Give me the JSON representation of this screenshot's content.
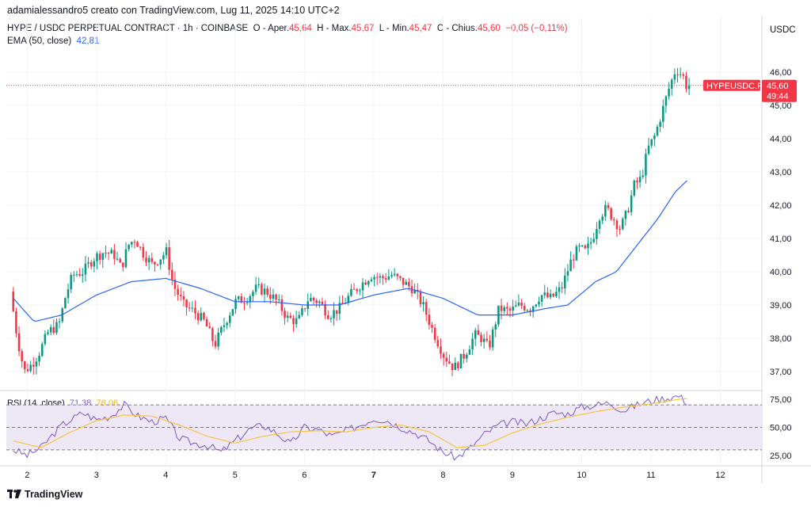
{
  "header": {
    "byline": "adamialessandro5 creato con TradingView.com, Lug 11, 2025 14:10 UTC+2",
    "symbol_line": "HYPE / USDC PERPETUAL CONTRACT · 1h · COINBASE",
    "o_label": "O - Aper.",
    "o_val": "45,64",
    "h_label": "H - Max.",
    "h_val": "45,67",
    "l_label": "L - Min.",
    "l_val": "45,47",
    "c_label": "C - Chius.",
    "c_val": "45,60",
    "change": "−0,05 (−0,11%)",
    "ema_label": "EMA (50, close)",
    "ema_val": "42,81",
    "rsi_label": "RSI (14, close)",
    "rsi_val": "71,38",
    "rsi_ma_val": "76,06",
    "currency": "USDC"
  },
  "price_tag": {
    "symbol": "HYPEUSDC.P",
    "price": "45,60",
    "countdown": "49:44"
  },
  "footer": {
    "brand": "TradingView"
  },
  "colors": {
    "up": "#089981",
    "down": "#f23645",
    "ema": "#2962ff",
    "rsi": "#7e57c2",
    "rsi_ma": "#f5c542",
    "rsi_band": "#ede7f6"
  },
  "chart_data": {
    "type": "candlestick",
    "interval": "1h",
    "price_axis": {
      "ylim": [
        36.5,
        46.5
      ],
      "ticks": [
        "46,00",
        "45,00",
        "44,00",
        "43,00",
        "42,00",
        "41,00",
        "40,00",
        "39,00",
        "38,00",
        "37,00"
      ]
    },
    "rsi_axis": {
      "ylim": [
        20,
        80
      ],
      "ticks": [
        "75,00",
        "50,00",
        "25,00"
      ],
      "bands": [
        30,
        70
      ]
    },
    "x_ticks": [
      "2",
      "3",
      "4",
      "5",
      "6",
      "7",
      "8",
      "9",
      "10",
      "11",
      "12"
    ],
    "price_path": [
      [
        1.8,
        39.4
      ],
      [
        1.9,
        38.0
      ],
      [
        2.0,
        37.0
      ],
      [
        2.1,
        37.2
      ],
      [
        2.2,
        37.5
      ],
      [
        2.35,
        38.2
      ],
      [
        2.5,
        38.4
      ],
      [
        2.6,
        39.3
      ],
      [
        2.7,
        39.9
      ],
      [
        2.85,
        40.0
      ],
      [
        3.0,
        40.4
      ],
      [
        3.15,
        40.6
      ],
      [
        3.3,
        40.5
      ],
      [
        3.4,
        40.1
      ],
      [
        3.5,
        40.8
      ],
      [
        3.6,
        41.0
      ],
      [
        3.7,
        40.6
      ],
      [
        3.85,
        40.2
      ],
      [
        3.95,
        40.4
      ],
      [
        4.05,
        40.6
      ],
      [
        4.15,
        39.6
      ],
      [
        4.3,
        39.0
      ],
      [
        4.45,
        38.8
      ],
      [
        4.6,
        38.5
      ],
      [
        4.75,
        37.8
      ],
      [
        4.9,
        38.5
      ],
      [
        5.05,
        39.1
      ],
      [
        5.2,
        39.2
      ],
      [
        5.35,
        39.5
      ],
      [
        5.5,
        39.4
      ],
      [
        5.65,
        39.1
      ],
      [
        5.8,
        38.6
      ],
      [
        5.95,
        38.5
      ],
      [
        6.1,
        39.2
      ],
      [
        6.25,
        39.1
      ],
      [
        6.4,
        38.7
      ],
      [
        6.55,
        38.9
      ],
      [
        6.7,
        39.3
      ],
      [
        6.85,
        39.6
      ],
      [
        7.0,
        39.9
      ],
      [
        7.15,
        39.8
      ],
      [
        7.3,
        39.9
      ],
      [
        7.45,
        39.7
      ],
      [
        7.6,
        39.5
      ],
      [
        7.75,
        39.0
      ],
      [
        7.9,
        38.2
      ],
      [
        8.05,
        37.5
      ],
      [
        8.2,
        37.1
      ],
      [
        8.35,
        37.5
      ],
      [
        8.5,
        38.1
      ],
      [
        8.6,
        38.0
      ],
      [
        8.7,
        37.7
      ],
      [
        8.85,
        38.9
      ],
      [
        9.0,
        38.8
      ],
      [
        9.15,
        39.0
      ],
      [
        9.3,
        38.9
      ],
      [
        9.45,
        39.3
      ],
      [
        9.6,
        39.2
      ],
      [
        9.75,
        39.5
      ],
      [
        9.9,
        40.4
      ],
      [
        10.0,
        40.7
      ],
      [
        10.1,
        40.6
      ],
      [
        10.2,
        41.0
      ],
      [
        10.3,
        41.7
      ],
      [
        10.4,
        41.9
      ],
      [
        10.5,
        41.6
      ],
      [
        10.6,
        41.3
      ],
      [
        10.7,
        41.8
      ],
      [
        10.8,
        42.6
      ],
      [
        10.9,
        42.8
      ],
      [
        11.0,
        43.7
      ],
      [
        11.1,
        44.1
      ],
      [
        11.2,
        44.8
      ],
      [
        11.3,
        45.5
      ],
      [
        11.4,
        46.1
      ],
      [
        11.5,
        45.9
      ],
      [
        11.55,
        45.6
      ]
    ],
    "ema_path": [
      [
        1.8,
        39.2
      ],
      [
        2.1,
        38.5
      ],
      [
        2.5,
        38.7
      ],
      [
        3.0,
        39.3
      ],
      [
        3.5,
        39.7
      ],
      [
        4.0,
        39.8
      ],
      [
        4.5,
        39.5
      ],
      [
        5.0,
        39.1
      ],
      [
        5.5,
        39.1
      ],
      [
        6.0,
        39.0
      ],
      [
        6.5,
        39.0
      ],
      [
        7.0,
        39.3
      ],
      [
        7.5,
        39.5
      ],
      [
        8.0,
        39.2
      ],
      [
        8.5,
        38.7
      ],
      [
        9.0,
        38.7
      ],
      [
        9.5,
        38.9
      ],
      [
        9.8,
        39.0
      ],
      [
        10.2,
        39.7
      ],
      [
        10.5,
        40.0
      ],
      [
        10.8,
        40.8
      ],
      [
        11.1,
        41.6
      ],
      [
        11.35,
        42.4
      ],
      [
        11.55,
        42.8
      ]
    ],
    "rsi_path": [
      [
        1.8,
        30
      ],
      [
        2.0,
        25
      ],
      [
        2.2,
        32
      ],
      [
        2.5,
        52
      ],
      [
        2.8,
        63
      ],
      [
        3.0,
        57
      ],
      [
        3.2,
        60
      ],
      [
        3.4,
        70
      ],
      [
        3.6,
        60
      ],
      [
        3.8,
        55
      ],
      [
        4.0,
        58
      ],
      [
        4.2,
        40
      ],
      [
        4.4,
        36
      ],
      [
        4.6,
        34
      ],
      [
        4.8,
        28
      ],
      [
        5.0,
        38
      ],
      [
        5.2,
        48
      ],
      [
        5.4,
        52
      ],
      [
        5.6,
        45
      ],
      [
        5.8,
        35
      ],
      [
        6.0,
        50
      ],
      [
        6.2,
        48
      ],
      [
        6.4,
        42
      ],
      [
        6.6,
        47
      ],
      [
        6.8,
        52
      ],
      [
        7.0,
        58
      ],
      [
        7.2,
        56
      ],
      [
        7.4,
        50
      ],
      [
        7.6,
        45
      ],
      [
        7.8,
        38
      ],
      [
        8.0,
        28
      ],
      [
        8.2,
        23
      ],
      [
        8.4,
        32
      ],
      [
        8.6,
        44
      ],
      [
        8.8,
        52
      ],
      [
        9.0,
        55
      ],
      [
        9.2,
        53
      ],
      [
        9.4,
        58
      ],
      [
        9.6,
        63
      ],
      [
        9.8,
        62
      ],
      [
        10.0,
        68
      ],
      [
        10.2,
        70
      ],
      [
        10.4,
        72
      ],
      [
        10.6,
        65
      ],
      [
        10.8,
        70
      ],
      [
        11.0,
        74
      ],
      [
        11.2,
        76
      ],
      [
        11.4,
        78
      ],
      [
        11.55,
        71
      ]
    ],
    "rsi_ma_path": [
      [
        1.8,
        38
      ],
      [
        2.2,
        32
      ],
      [
        2.6,
        45
      ],
      [
        3.0,
        56
      ],
      [
        3.4,
        61
      ],
      [
        3.8,
        60
      ],
      [
        4.2,
        52
      ],
      [
        4.6,
        42
      ],
      [
        5.0,
        36
      ],
      [
        5.4,
        42
      ],
      [
        5.8,
        46
      ],
      [
        6.2,
        47
      ],
      [
        6.6,
        46
      ],
      [
        7.0,
        50
      ],
      [
        7.4,
        52
      ],
      [
        7.8,
        46
      ],
      [
        8.2,
        32
      ],
      [
        8.6,
        34
      ],
      [
        9.0,
        45
      ],
      [
        9.4,
        53
      ],
      [
        9.8,
        59
      ],
      [
        10.2,
        64
      ],
      [
        10.6,
        68
      ],
      [
        11.0,
        71
      ],
      [
        11.4,
        75
      ],
      [
        11.55,
        76
      ]
    ],
    "last_price": 45.6
  }
}
